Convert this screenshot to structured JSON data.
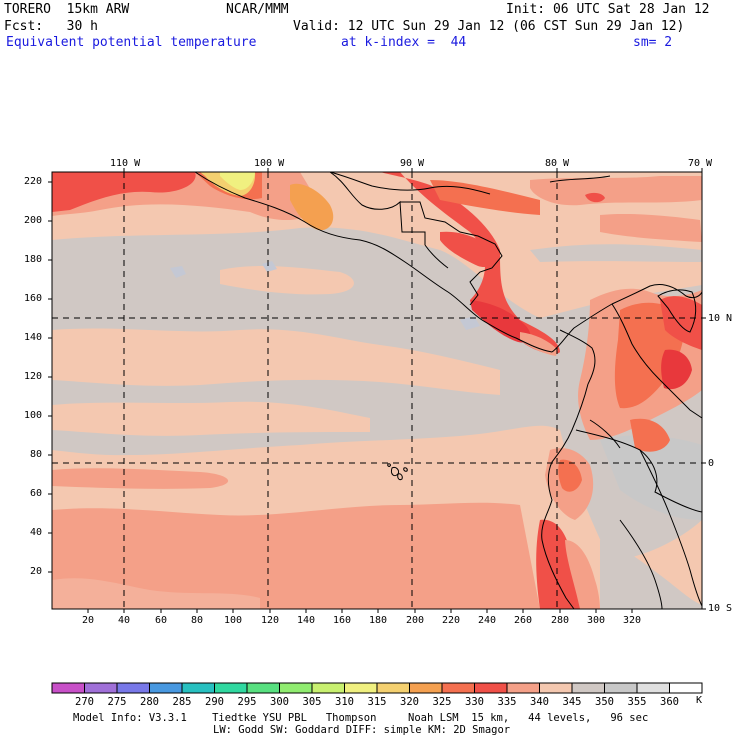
{
  "header": {
    "model": "TORERO  15km ARW",
    "org": "NCAR/MMM",
    "init": "Init: 06 UTC Sat 28 Jan 12",
    "fcst": "Fcst:   30 h",
    "valid": "Valid: 12 UTC Sun 29 Jan 12 (06 CST Sun 29 Jan 12)",
    "field": "Equivalent potential temperature",
    "level": "at k-index =  44",
    "smooth": "sm= 2"
  },
  "axes": {
    "top_lon": [
      "110 W",
      "100 W",
      "90 W",
      "80 W",
      "70 W"
    ],
    "right_lat": [
      "10 N",
      "0",
      "10 S"
    ],
    "left_y": [
      "220",
      "200",
      "180",
      "160",
      "140",
      "120",
      "100",
      "80",
      "60",
      "40",
      "20"
    ],
    "bottom_x": [
      "20",
      "40",
      "60",
      "80",
      "100",
      "120",
      "140",
      "160",
      "180",
      "200",
      "220",
      "240",
      "260",
      "280",
      "300",
      "320"
    ]
  },
  "colorbar": {
    "labels": [
      "270",
      "275",
      "280",
      "285",
      "290",
      "295",
      "300",
      "305",
      "310",
      "315",
      "320",
      "325",
      "330",
      "335",
      "340",
      "345",
      "350",
      "355",
      "360"
    ],
    "unit": "K",
    "colors": [
      "#c850c8",
      "#a070d8",
      "#7878e8",
      "#4898e0",
      "#28c0c0",
      "#30d8a0",
      "#58e080",
      "#90ec70",
      "#c8f070",
      "#f0f080",
      "#f4d070",
      "#f4a050",
      "#f47050",
      "#f05048",
      "#f4a088",
      "#f4c8b0",
      "#d0c8c4",
      "#c8c8c8",
      "#e0e0e0",
      "#ffffff"
    ]
  },
  "footer": {
    "line1": "Model Info: V3.3.1    Tiedtke YSU PBL   Thompson     Noah LSM  15 km,   44 levels,   96 sec",
    "line2": "LW: Godd SW: Goddard DIFF: simple KM: 2D Smagor"
  }
}
